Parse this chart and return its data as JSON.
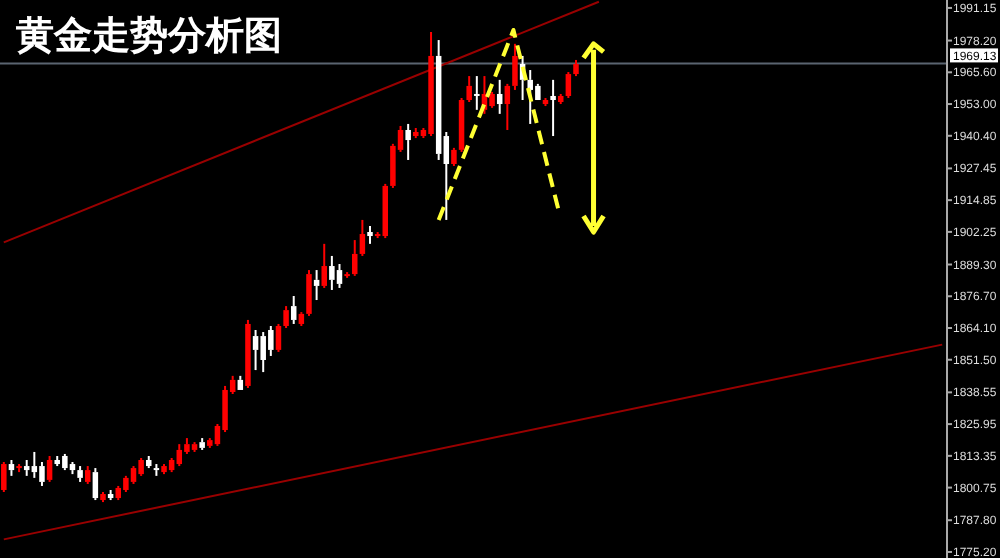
{
  "chart_data": {
    "type": "candlestick",
    "title": "黄金走势分析图",
    "categories": [
      null,
      null,
      null,
      null,
      null,
      null,
      null,
      null,
      null,
      null,
      null,
      null,
      null,
      null,
      null,
      null,
      null,
      null,
      null,
      null,
      null,
      null,
      null,
      null,
      null,
      null,
      null,
      null,
      null,
      null,
      null,
      null,
      null,
      null,
      null,
      null,
      null,
      null,
      null,
      null,
      null,
      null,
      null,
      null,
      null,
      null,
      null,
      null,
      null,
      null,
      null,
      null,
      null,
      null,
      null,
      null,
      null,
      null,
      null,
      null,
      null,
      null,
      null,
      null,
      null,
      null,
      null,
      null,
      null,
      null,
      null,
      null,
      null,
      null,
      null,
      null,
      null,
      null,
      null,
      null,
      null,
      null,
      null,
      null,
      null,
      null,
      null,
      null,
      null,
      null,
      null,
      null,
      null,
      null,
      null,
      null,
      null,
      null,
      null,
      null,
      null,
      null,
      null,
      null,
      null,
      null,
      null,
      null,
      null,
      null,
      null,
      null,
      null,
      null,
      null,
      null,
      null,
      null,
      null,
      null,
      null,
      null,
      null,
      null
    ],
    "ohlc": [
      [
        1799.8,
        1810.9,
        1799.0,
        1810.1
      ],
      [
        1810.1,
        1811.7,
        1805.4,
        1807.7
      ],
      [
        1808.5,
        1810.1,
        1806.9,
        1809.3
      ],
      [
        1809.3,
        1811.7,
        1805.4,
        1807.7
      ],
      [
        1809.3,
        1814.9,
        1804.6,
        1806.9
      ],
      [
        1809.3,
        1810.9,
        1801.4,
        1803.0
      ],
      [
        1803.8,
        1813.3,
        1803.0,
        1811.7
      ],
      [
        1811.7,
        1813.3,
        1809.3,
        1810.1
      ],
      [
        1813.3,
        1814.1,
        1807.7,
        1808.5
      ],
      [
        1810.1,
        1810.9,
        1806.1,
        1807.7
      ],
      [
        1807.7,
        1809.3,
        1803.0,
        1804.6
      ],
      [
        1803.0,
        1809.3,
        1802.2,
        1807.7
      ],
      [
        1806.9,
        1808.5,
        1795.8,
        1796.6
      ],
      [
        1795.8,
        1799.0,
        1795.0,
        1798.2
      ],
      [
        1798.2,
        1799.8,
        1795.8,
        1796.6
      ],
      [
        1796.6,
        1801.4,
        1795.8,
        1800.6
      ],
      [
        1799.8,
        1805.4,
        1799.0,
        1804.6
      ],
      [
        1803.0,
        1809.3,
        1802.2,
        1808.5
      ],
      [
        1806.1,
        1812.5,
        1805.4,
        1811.7
      ],
      [
        1811.7,
        1813.3,
        1808.5,
        1809.3
      ],
      [
        1808.5,
        1810.1,
        1805.4,
        1807.7
      ],
      [
        1806.9,
        1810.1,
        1806.1,
        1809.3
      ],
      [
        1807.7,
        1812.5,
        1806.9,
        1811.7
      ],
      [
        1810.1,
        1818.0,
        1809.3,
        1815.7
      ],
      [
        1814.9,
        1820.4,
        1814.1,
        1818.0
      ],
      [
        1815.7,
        1818.8,
        1814.9,
        1818.0
      ],
      [
        1818.8,
        1820.4,
        1815.7,
        1816.5
      ],
      [
        1817.3,
        1820.4,
        1816.5,
        1819.6
      ],
      [
        1818.0,
        1826.0,
        1817.3,
        1825.2
      ],
      [
        1823.6,
        1841.1,
        1822.8,
        1839.5
      ],
      [
        1838.7,
        1845.1,
        1837.9,
        1843.5
      ],
      [
        1843.5,
        1845.1,
        1839.5,
        1839.5
      ],
      [
        1841.1,
        1867.3,
        1840.3,
        1865.7
      ],
      [
        1860.9,
        1863.3,
        1847.4,
        1855.4
      ],
      [
        1860.9,
        1862.5,
        1846.6,
        1851.4
      ],
      [
        1863.3,
        1864.9,
        1853.0,
        1855.4
      ],
      [
        1855.4,
        1865.7,
        1854.6,
        1864.9
      ],
      [
        1864.9,
        1872.8,
        1864.1,
        1871.2
      ],
      [
        1872.8,
        1876.8,
        1865.7,
        1867.3
      ],
      [
        1865.7,
        1870.4,
        1864.9,
        1869.7
      ],
      [
        1869.7,
        1887.1,
        1868.9,
        1885.5
      ],
      [
        1883.2,
        1887.1,
        1875.2,
        1880.8
      ],
      [
        1880.8,
        1897.5,
        1880.0,
        1888.7
      ],
      [
        1888.7,
        1892.7,
        1879.2,
        1883.2
      ],
      [
        1887.1,
        1889.5,
        1880.0,
        1881.6
      ],
      [
        1884.8,
        1886.3,
        1884.0,
        1885.5
      ],
      [
        1885.5,
        1899.0,
        1884.8,
        1893.5
      ],
      [
        1893.5,
        1907.0,
        1892.7,
        1901.4
      ],
      [
        1902.2,
        1904.6,
        1897.5,
        1900.6
      ],
      [
        1900.6,
        1902.2,
        1899.8,
        1901.4
      ],
      [
        1900.6,
        1921.3,
        1899.8,
        1920.5
      ],
      [
        1920.5,
        1937.2,
        1919.7,
        1936.4
      ],
      [
        1934.8,
        1944.3,
        1934.0,
        1942.7
      ],
      [
        1942.7,
        1945.1,
        1930.8,
        1938.7
      ],
      [
        1940.3,
        1943.5,
        1939.5,
        1941.9
      ],
      [
        1940.3,
        1943.5,
        1939.5,
        1942.7
      ],
      [
        1941.1,
        1981.6,
        1940.3,
        1972.1
      ],
      [
        1972.1,
        1978.4,
        1930.8,
        1933.2
      ],
      [
        1940.3,
        1941.9,
        1907.0,
        1929.2
      ],
      [
        1929.2,
        1935.6,
        1928.4,
        1934.8
      ],
      [
        1934.8,
        1955.4,
        1934.0,
        1954.6
      ],
      [
        1954.6,
        1964.1,
        1953.8,
        1960.2
      ],
      [
        1957.0,
        1964.1,
        1950.7,
        1956.2
      ],
      [
        1950.7,
        1964.1,
        1949.1,
        1957.0
      ],
      [
        1952.2,
        1957.8,
        1951.5,
        1957.0
      ],
      [
        1957.0,
        1962.6,
        1949.1,
        1953.0
      ],
      [
        1953.0,
        1961.0,
        1942.7,
        1960.2
      ],
      [
        1960.2,
        1976.9,
        1958.6,
        1972.1
      ],
      [
        1968.9,
        1972.1,
        1954.6,
        1962.6
      ],
      [
        1962.6,
        1966.5,
        1945.1,
        1958.6
      ],
      [
        1960.2,
        1961.0,
        1954.6,
        1954.6
      ],
      [
        1953.0,
        1955.4,
        1952.2,
        1954.6
      ],
      [
        1956.2,
        1962.6,
        1940.3,
        1954.6
      ],
      [
        1953.8,
        1957.0,
        1953.0,
        1956.2
      ],
      [
        1956.2,
        1965.7,
        1955.4,
        1964.9
      ],
      [
        1964.9,
        1970.5,
        1964.1,
        1968.9
      ],
      null,
      null,
      null,
      null,
      null,
      null,
      null,
      null,
      null,
      null,
      null,
      null,
      null,
      null,
      null,
      null,
      null,
      null,
      null,
      null,
      null,
      null,
      null,
      null,
      null,
      null,
      null,
      null,
      null,
      null,
      null,
      null,
      null,
      null,
      null,
      null,
      null,
      null,
      null,
      null,
      null,
      null,
      null,
      null,
      null,
      null,
      null,
      null
    ],
    "colors": [
      "#ff0000",
      "#ffffff",
      "#ff0000",
      "#ffffff",
      "#ffffff",
      "#ffffff",
      "#ff0000",
      "#ffffff",
      "#ffffff",
      "#ffffff",
      "#ffffff",
      "#ff0000",
      "#ffffff",
      "#ff0000",
      "#ffffff",
      "#ff0000",
      "#ff0000",
      "#ff0000",
      "#ff0000",
      "#ffffff",
      "#ffffff",
      "#ff0000",
      "#ff0000",
      "#ff0000",
      "#ff0000",
      "#ff0000",
      "#ffffff",
      "#ff0000",
      "#ff0000",
      "#ff0000",
      "#ff0000",
      "#ffffff",
      "#ff0000",
      "#ffffff",
      "#ffffff",
      "#ffffff",
      "#ff0000",
      "#ff0000",
      "#ffffff",
      "#ff0000",
      "#ff0000",
      "#ffffff",
      "#ff0000",
      "#ffffff",
      "#ffffff",
      "#ff0000",
      "#ff0000",
      "#ff0000",
      "#ffffff",
      "#ff0000",
      "#ff0000",
      "#ff0000",
      "#ff0000",
      "#ffffff",
      "#ff0000",
      "#ff0000",
      "#ff0000",
      "#ffffff",
      "#ffffff",
      "#ff0000",
      "#ff0000",
      "#ff0000",
      "#ffffff",
      "#ff0000",
      "#ff0000",
      "#ffffff",
      "#ff0000",
      "#ff0000",
      "#ffffff",
      "#ffffff",
      "#ffffff",
      "#ff0000",
      "#ffffff",
      "#ff0000",
      "#ff0000",
      "#ff0000",
      null,
      null,
      null,
      null,
      null,
      null,
      null,
      null,
      null,
      null,
      null,
      null,
      null,
      null,
      null,
      null,
      null,
      null,
      null,
      null,
      null,
      null,
      null,
      null,
      null,
      null,
      null,
      null,
      null,
      null,
      null,
      null,
      null,
      null,
      null,
      null,
      null,
      null,
      null,
      null,
      null,
      null,
      null,
      null,
      null,
      null,
      null,
      null
    ],
    "series": [
      {
        "type": "line",
        "color": "#990000",
        "values": [
          1898.1,
          null,
          null,
          null,
          null,
          null,
          null,
          null,
          null,
          null,
          null,
          null,
          null,
          null,
          null,
          null,
          null,
          null,
          null,
          null,
          null,
          null,
          null,
          null,
          null,
          null,
          null,
          null,
          null,
          null,
          null,
          null,
          null,
          null,
          null,
          null,
          null,
          null,
          null,
          null,
          null,
          null,
          null,
          null,
          null,
          null,
          null,
          null,
          null,
          null,
          null,
          null,
          null,
          null,
          null,
          null,
          null,
          null,
          null,
          null,
          null,
          null,
          null,
          null,
          null,
          null,
          null,
          null,
          null,
          null,
          null,
          null,
          null,
          null,
          null,
          null,
          null,
          null,
          1993.6,
          null,
          null,
          null,
          null,
          null,
          null,
          null,
          null,
          null,
          null,
          null,
          null,
          null,
          null,
          null,
          null,
          null,
          null,
          null,
          null,
          null,
          null,
          null,
          null,
          null,
          null,
          null,
          null,
          null,
          null,
          null,
          null,
          null,
          null,
          null,
          null,
          null,
          null,
          null,
          null,
          null,
          null,
          null,
          null,
          null
        ]
      },
      {
        "type": "line",
        "color": "#990000",
        "values": [
          1780.2,
          null,
          null,
          null,
          null,
          null,
          null,
          null,
          null,
          null,
          null,
          null,
          null,
          null,
          null,
          null,
          null,
          null,
          null,
          null,
          null,
          null,
          null,
          null,
          null,
          null,
          null,
          null,
          null,
          null,
          null,
          null,
          null,
          null,
          null,
          null,
          null,
          null,
          null,
          null,
          null,
          null,
          null,
          null,
          null,
          null,
          null,
          null,
          null,
          null,
          null,
          null,
          null,
          null,
          null,
          null,
          null,
          null,
          null,
          null,
          null,
          null,
          null,
          null,
          null,
          null,
          null,
          null,
          null,
          null,
          null,
          null,
          null,
          null,
          null,
          null,
          null,
          null,
          null,
          null,
          null,
          null,
          null,
          null,
          null,
          null,
          null,
          null,
          null,
          null,
          null,
          null,
          null,
          null,
          null,
          null,
          null,
          null,
          null,
          null,
          null,
          null,
          null,
          null,
          null,
          null,
          null,
          null,
          null,
          null,
          null,
          null,
          null,
          null,
          null,
          null,
          null,
          null,
          null,
          null,
          null,
          null,
          null,
          1857.5
        ]
      }
    ],
    "ref_lines": [
      {
        "axis": "y",
        "value": 1969.13,
        "label": "1969.13",
        "color": "#5a6470",
        "line_style": "solid"
      }
    ],
    "ylim": [
      1772.8,
      1994.3
    ],
    "yticks": [
      {
        "value": 1991.15,
        "label": "1991.15"
      },
      {
        "value": 1978.2,
        "label": "1978.20"
      },
      {
        "value": 1965.6,
        "label": "1965.60"
      },
      {
        "value": 1953.0,
        "label": "1953.00"
      },
      {
        "value": 1940.4,
        "label": "1940.40"
      },
      {
        "value": 1927.45,
        "label": "1927.45"
      },
      {
        "value": 1914.85,
        "label": "1914.85"
      },
      {
        "value": 1902.25,
        "label": "1902.25"
      },
      {
        "value": 1889.3,
        "label": "1889.30"
      },
      {
        "value": 1876.7,
        "label": "1876.70"
      },
      {
        "value": 1864.1,
        "label": "1864.10"
      },
      {
        "value": 1851.5,
        "label": "1851.50"
      },
      {
        "value": 1838.55,
        "label": "1838.55"
      },
      {
        "value": 1825.95,
        "label": "1825.95"
      },
      {
        "value": 1813.35,
        "label": "1813.35"
      },
      {
        "value": 1800.75,
        "label": "1800.75"
      },
      {
        "value": 1787.8,
        "label": "1787.80"
      },
      {
        "value": 1775.2,
        "label": "1775.20"
      }
    ],
    "tick_labels": "y"
  }
}
